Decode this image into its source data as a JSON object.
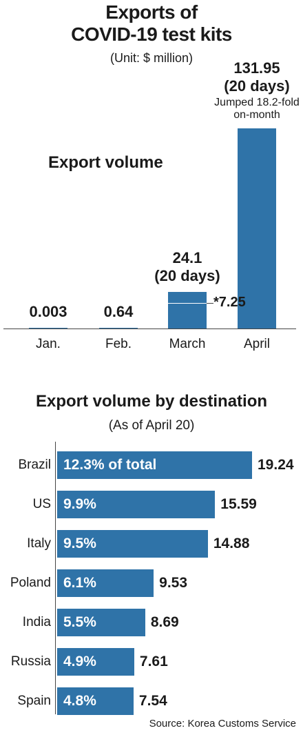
{
  "header": {
    "title_line1": "Exports of",
    "title_line2": "COVID-19 test kits",
    "unit": "(Unit: $ million)"
  },
  "chart_data": [
    {
      "type": "bar",
      "title": "Export volume",
      "categories": [
        "Jan.",
        "Feb.",
        "March",
        "April"
      ],
      "values": [
        0.003,
        0.64,
        24.1,
        131.95
      ],
      "value_labels": [
        "0.003",
        "0.64",
        "24.1",
        "131.95"
      ],
      "sub_labels": [
        "",
        "",
        "(20 days)",
        "(20 days)"
      ],
      "march_marker": {
        "value": 7.25,
        "label": "*7.25"
      },
      "april_note": [
        "Jumped 18.2-fold",
        "on-month"
      ],
      "color": "#2f73a8"
    },
    {
      "type": "bar",
      "orientation": "horizontal",
      "title": "Export volume by destination",
      "subtitle": "(As of April 20)",
      "categories": [
        "Brazil",
        "US",
        "Italy",
        "Poland",
        "India",
        "Russia",
        "Spain"
      ],
      "values": [
        19.24,
        15.59,
        14.88,
        9.53,
        8.69,
        7.61,
        7.54
      ],
      "value_labels": [
        "19.24",
        "15.59",
        "14.88",
        "9.53",
        "8.69",
        "7.61",
        "7.54"
      ],
      "share_labels": [
        "12.3% of total",
        "9.9%",
        "9.5%",
        "6.1%",
        "5.5%",
        "4.9%",
        "4.8%"
      ],
      "color": "#2f73a8"
    }
  ],
  "footer": {
    "source": "Source: Korea Customs Service"
  }
}
